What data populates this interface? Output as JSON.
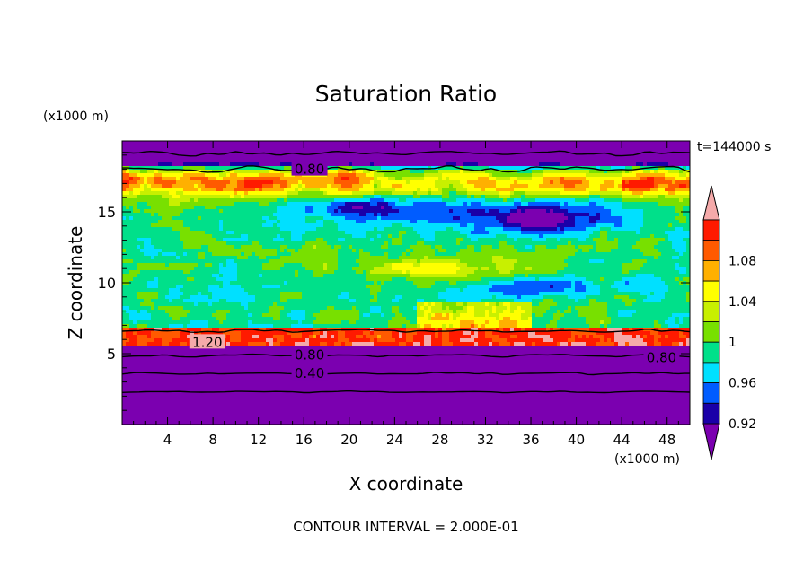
{
  "chart_data": {
    "type": "heatmap",
    "title": "Saturation Ratio",
    "xlabel": "X coordinate",
    "ylabel": "Z coordinate",
    "x_unit": "(x1000 m)",
    "y_unit": "(x1000 m)",
    "time_label": "t=144000 s",
    "footer": "CONTOUR INTERVAL = 2.000E-01",
    "xlim": [
      0,
      50
    ],
    "ylim": [
      0,
      20
    ],
    "x_ticks": [
      "4",
      "8",
      "12",
      "16",
      "20",
      "24",
      "28",
      "32",
      "36",
      "40",
      "44",
      "48"
    ],
    "x_tick_values": [
      4,
      8,
      12,
      16,
      20,
      24,
      28,
      32,
      36,
      40,
      44,
      48
    ],
    "y_ticks": [
      "5",
      "10",
      "15"
    ],
    "y_tick_values": [
      5,
      10,
      15
    ],
    "colorbar": {
      "labels": [
        "1.08",
        "1.04",
        "1",
        "0.96",
        "0.92"
      ],
      "label_values": [
        1.08,
        1.04,
        1.0,
        0.96,
        0.92
      ],
      "bins": [
        {
          "upper": 0.92,
          "color": "#7b00b0"
        },
        {
          "upper": 0.94,
          "color": "#1a00a8"
        },
        {
          "upper": 0.96,
          "color": "#005cff"
        },
        {
          "upper": 0.98,
          "color": "#00e0ff"
        },
        {
          "upper": 1.0,
          "color": "#00e08a"
        },
        {
          "upper": 1.02,
          "color": "#78e000"
        },
        {
          "upper": 1.04,
          "color": "#c8f000"
        },
        {
          "upper": 1.06,
          "color": "#ffff00"
        },
        {
          "upper": 1.08,
          "color": "#ffb000"
        },
        {
          "upper": 1.1,
          "color": "#ff5a00"
        },
        {
          "upper": 1.12,
          "color": "#ff1a00"
        },
        {
          "upper": 9.99,
          "color": "#f5aaaa"
        }
      ]
    },
    "contour_labels": [
      {
        "text": "0.80",
        "x": 16.5,
        "y": 18.0
      },
      {
        "text": "1.20",
        "x": 7.5,
        "y": 5.8
      },
      {
        "text": "0.80",
        "x": 16.5,
        "y": 4.9
      },
      {
        "text": "0.40",
        "x": 16.5,
        "y": 3.6
      },
      {
        "text": "0.80",
        "x": 47.5,
        "y": 4.7
      }
    ],
    "regions": [
      {
        "z_range": [
          0,
          5
        ],
        "value": 0.6,
        "description": "dry lower layer"
      },
      {
        "z_range": [
          5.5,
          6.8
        ],
        "value": 1.2,
        "description": "supersaturated band near cloud base"
      },
      {
        "z_range": [
          7,
          15
        ],
        "value": 1.0,
        "description": "near-saturated mid layer"
      },
      {
        "z_range": [
          16,
          18
        ],
        "value": 1.09,
        "description": "supersaturated upper band"
      },
      {
        "z_range": [
          18.5,
          20
        ],
        "value": 0.6,
        "description": "dry top layer"
      }
    ]
  }
}
